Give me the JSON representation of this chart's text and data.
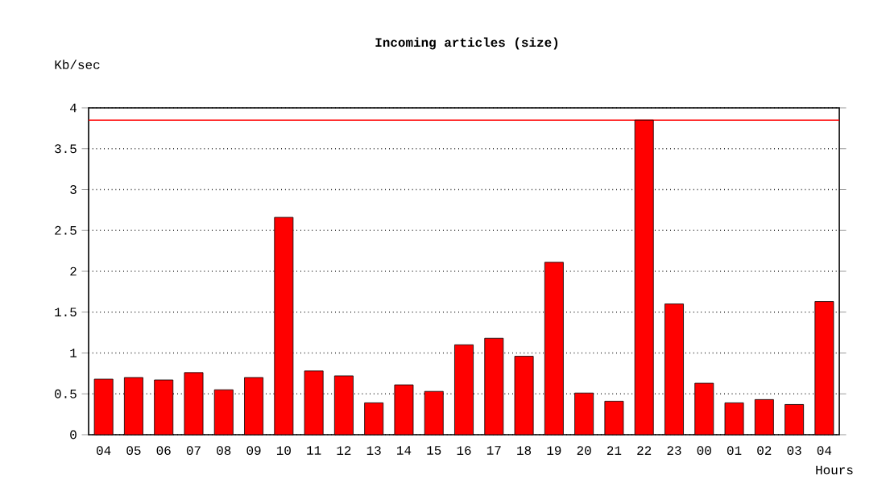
{
  "chart_data": {
    "type": "bar",
    "title": "Incoming articles (size)",
    "ylabel": "Kb/sec",
    "xlabel": "Hours",
    "categories": [
      "04",
      "05",
      "06",
      "07",
      "08",
      "09",
      "10",
      "11",
      "12",
      "13",
      "14",
      "15",
      "16",
      "17",
      "18",
      "19",
      "20",
      "21",
      "22",
      "23",
      "00",
      "01",
      "02",
      "03",
      "04"
    ],
    "values": [
      0.68,
      0.7,
      0.67,
      0.76,
      0.55,
      0.7,
      2.66,
      0.78,
      0.72,
      0.39,
      0.61,
      0.53,
      1.1,
      1.18,
      0.96,
      2.11,
      0.51,
      0.41,
      3.85,
      1.6,
      0.63,
      0.39,
      0.43,
      0.37,
      1.63
    ],
    "color": "#ff0000",
    "ylim": [
      0,
      4
    ],
    "yticks": [
      0,
      0.5,
      1,
      1.5,
      2,
      2.5,
      3,
      3.5,
      4
    ],
    "grid": "y",
    "ref_lines": [
      {
        "axis": "y",
        "value": 3.85,
        "color": "#ff0000",
        "line_style": "solid"
      }
    ]
  }
}
